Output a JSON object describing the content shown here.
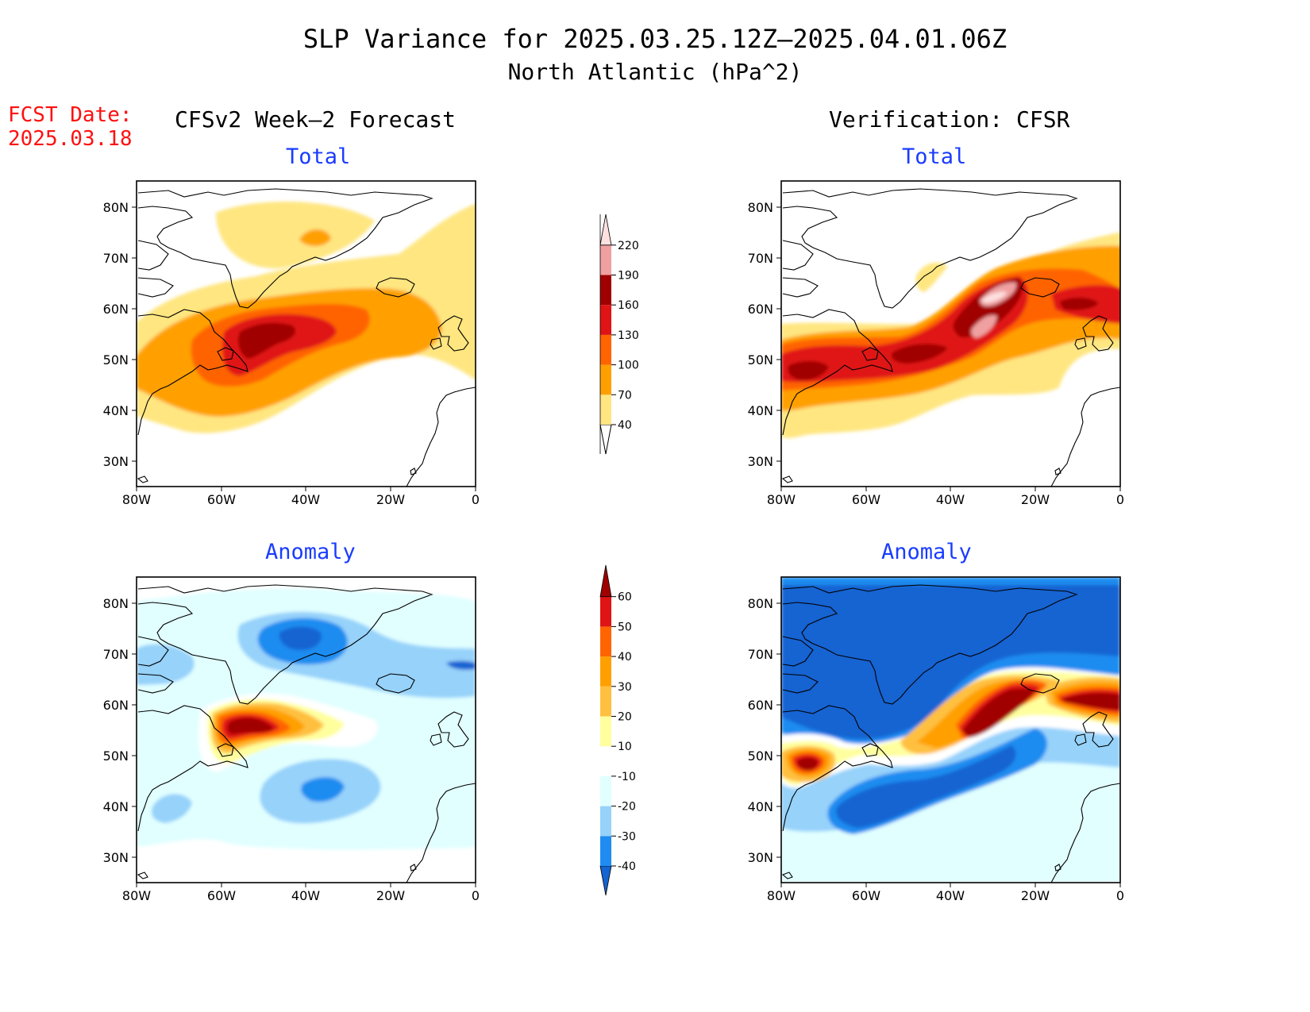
{
  "header": {
    "title": "SLP Variance for 2025.03.25.12Z–2025.04.01.06Z",
    "subtitle": "North Atlantic (hPa^2)"
  },
  "fcst": {
    "line1": "FCST Date:",
    "line2": "2025.03.18"
  },
  "columns": {
    "left": "CFSv2 Week–2 Forecast",
    "right": "Verification: CFSR"
  },
  "panel_titles": {
    "total": "Total",
    "anomaly": "Anomaly"
  },
  "axes": {
    "lat_labels": [
      "80N",
      "70N",
      "60N",
      "50N",
      "40N",
      "30N"
    ],
    "lon_labels": [
      "80W",
      "60W",
      "40W",
      "20W",
      "0"
    ]
  },
  "colorbars": {
    "total": {
      "levels": [
        "40",
        "70",
        "100",
        "130",
        "160",
        "190",
        "220"
      ],
      "colors": [
        "#ffe680",
        "#ffa000",
        "#ff6400",
        "#e01414",
        "#a00000",
        "#f0a0a0",
        "#fde0e0"
      ]
    },
    "anomaly": {
      "levels": [
        "-40",
        "-30",
        "-20",
        "-10",
        "10",
        "20",
        "30",
        "40",
        "50",
        "60"
      ],
      "colors": [
        "#1464d2",
        "#1e8cf0",
        "#96d2fa",
        "#e1ffff",
        "#ffffff",
        "#ffff9e",
        "#ffc040",
        "#ffa000",
        "#ff6400",
        "#e01414",
        "#a00000"
      ]
    }
  }
}
